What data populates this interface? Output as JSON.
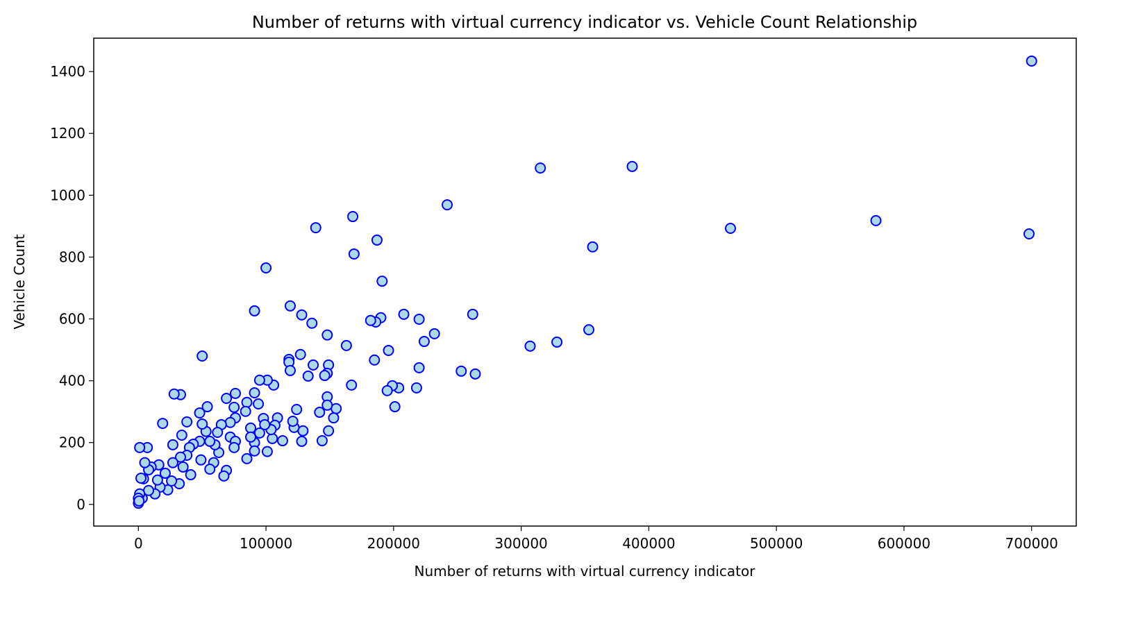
{
  "chart_data": {
    "type": "scatter",
    "title": "Number of returns with virtual currency indicator vs. Vehicle Count Relationship",
    "x_label": "Number of returns with virtual currency indicator",
    "y_label": "Vehicle Count",
    "color": "#add8e6",
    "edgecolor": "#0000ff",
    "grid": false,
    "xlim": [
      -35000,
      735000
    ],
    "ylim": [
      -70,
      1508
    ],
    "xticks": [
      0,
      100000,
      200000,
      300000,
      400000,
      500000,
      600000,
      700000
    ],
    "yticks": [
      0,
      200,
      400,
      600,
      800,
      1000,
      1200,
      1400
    ],
    "x": [
      700000,
      698000,
      578000,
      464000,
      387000,
      315000,
      356000,
      353000,
      328000,
      307000,
      264000,
      253000,
      262000,
      242000,
      232000,
      224000,
      220000,
      220000,
      218000,
      208000,
      204000,
      201000,
      199000,
      196000,
      195000,
      191000,
      190000,
      187000,
      186000,
      182000,
      185000,
      168000,
      169000,
      167000,
      163000,
      155000,
      153000,
      149000,
      148000,
      146000,
      148000,
      148000,
      148000,
      149000,
      144000,
      142000,
      139000,
      137000,
      136000,
      133000,
      128000,
      127000,
      129000,
      128000,
      124000,
      122000,
      121000,
      119000,
      118000,
      118000,
      119000,
      113000,
      109000,
      107000,
      106000,
      105000,
      104000,
      101000,
      100000,
      101000,
      95000,
      98000,
      99000,
      94000,
      95000,
      91000,
      91000,
      91000,
      91000,
      88000,
      88000,
      85000,
      84000,
      85000,
      76000,
      75000,
      76000,
      72000,
      72000,
      76000,
      75000,
      69000,
      69000,
      67000,
      65000,
      63000,
      62000,
      60000,
      59000,
      56000,
      56000,
      54000,
      53000,
      50000,
      50000,
      48000,
      48000,
      49000,
      43000,
      41000,
      40000,
      38000,
      38000,
      35000,
      34000,
      33000,
      33000,
      32000,
      28000,
      27000,
      27000,
      26000,
      23000,
      21000,
      19000,
      17000,
      16000,
      15000,
      13000,
      10000,
      8000,
      7000,
      8000,
      5000,
      4000,
      3000,
      2000,
      1000,
      1000,
      0,
      0,
      500
    ],
    "y": [
      1434,
      875,
      918,
      893,
      1093,
      1088,
      833,
      565,
      525,
      512,
      422,
      431,
      615,
      969,
      552,
      527,
      442,
      599,
      377,
      615,
      377,
      316,
      384,
      498,
      368,
      722,
      604,
      855,
      590,
      595,
      467,
      931,
      810,
      386,
      514,
      310,
      280,
      451,
      424,
      417,
      548,
      348,
      321,
      238,
      206,
      298,
      895,
      451,
      586,
      415,
      613,
      485,
      238,
      204,
      307,
      249,
      269,
      642,
      469,
      460,
      433,
      206,
      280,
      256,
      386,
      213,
      242,
      402,
      765,
      171,
      402,
      278,
      258,
      325,
      231,
      626,
      361,
      200,
      173,
      247,
      218,
      330,
      301,
      148,
      359,
      314,
      280,
      265,
      218,
      204,
      184,
      343,
      110,
      92,
      258,
      168,
      233,
      193,
      135,
      204,
      114,
      316,
      236,
      260,
      480,
      296,
      204,
      144,
      195,
      96,
      184,
      267,
      159,
      121,
      224,
      355,
      153,
      67,
      357,
      193,
      135,
      76,
      47,
      101,
      262,
      56,
      128,
      79,
      34,
      121,
      112,
      184,
      45,
      135,
      83,
      20,
      85,
      184,
      34,
      4,
      20,
      11
    ]
  }
}
